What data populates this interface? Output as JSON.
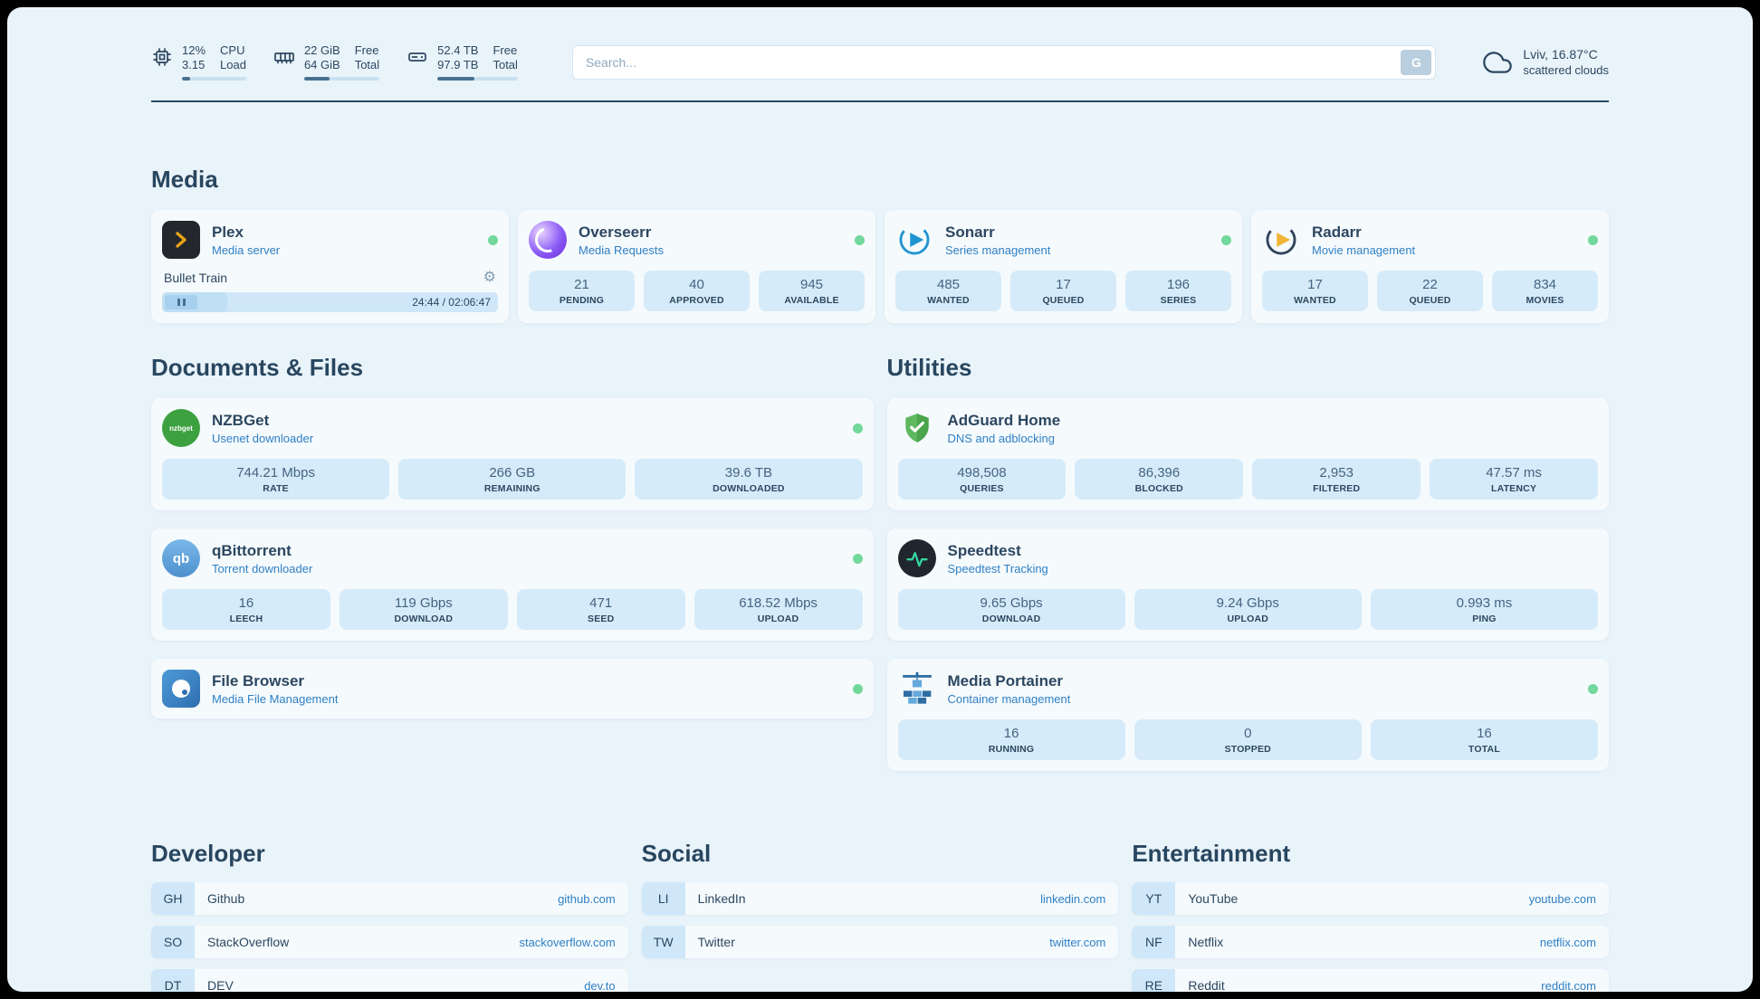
{
  "topbar": {
    "cpu": {
      "value1": "12%",
      "value2": "3.15",
      "label1": "CPU",
      "label2": "Load",
      "percent": 12
    },
    "memory": {
      "value1": "22 GiB",
      "value2": "64 GiB",
      "label1": "Free",
      "label2": "Total",
      "percent": 34
    },
    "disk": {
      "value1": "52.4 TB",
      "value2": "97.9 TB",
      "label1": "Free",
      "label2": "Total",
      "percent": 46
    },
    "search": {
      "placeholder": "Search...",
      "button_label": "G"
    },
    "weather": {
      "location": "Lviv, 16.87°C",
      "condition": "scattered clouds"
    }
  },
  "sections": {
    "media": "Media",
    "documents": "Documents & Files",
    "utilities": "Utilities",
    "developer": "Developer",
    "social": "Social",
    "entertainment": "Entertainment"
  },
  "services": {
    "plex": {
      "name": "Plex",
      "subtitle": "Media server",
      "now_playing": "Bullet Train",
      "time": "24:44 / 02:06:47",
      "progress": 19.5
    },
    "overseerr": {
      "name": "Overseerr",
      "subtitle": "Media Requests",
      "stats": [
        {
          "value": "21",
          "label": "PENDING"
        },
        {
          "value": "40",
          "label": "APPROVED"
        },
        {
          "value": "945",
          "label": "AVAILABLE"
        }
      ]
    },
    "sonarr": {
      "name": "Sonarr",
      "subtitle": "Series management",
      "stats": [
        {
          "value": "485",
          "label": "WANTED"
        },
        {
          "value": "17",
          "label": "QUEUED"
        },
        {
          "value": "196",
          "label": "SERIES"
        }
      ]
    },
    "radarr": {
      "name": "Radarr",
      "subtitle": "Movie management",
      "stats": [
        {
          "value": "17",
          "label": "WANTED"
        },
        {
          "value": "22",
          "label": "QUEUED"
        },
        {
          "value": "834",
          "label": "MOVIES"
        }
      ]
    },
    "nzbget": {
      "name": "NZBGet",
      "subtitle": "Usenet downloader",
      "stats": [
        {
          "value": "744.21 Mbps",
          "label": "RATE"
        },
        {
          "value": "266 GB",
          "label": "REMAINING"
        },
        {
          "value": "39.6 TB",
          "label": "DOWNLOADED"
        }
      ]
    },
    "qbittorrent": {
      "name": "qBittorrent",
      "subtitle": "Torrent downloader",
      "stats": [
        {
          "value": "16",
          "label": "LEECH"
        },
        {
          "value": "119 Gbps",
          "label": "DOWNLOAD"
        },
        {
          "value": "471",
          "label": "SEED"
        },
        {
          "value": "618.52 Mbps",
          "label": "UPLOAD"
        }
      ]
    },
    "filebrowser": {
      "name": "File Browser",
      "subtitle": "Media File Management"
    },
    "adguard": {
      "name": "AdGuard Home",
      "subtitle": "DNS and adblocking",
      "stats": [
        {
          "value": "498,508",
          "label": "QUERIES"
        },
        {
          "value": "86,396",
          "label": "BLOCKED"
        },
        {
          "value": "2,953",
          "label": "FILTERED"
        },
        {
          "value": "47.57 ms",
          "label": "LATENCY"
        }
      ]
    },
    "speedtest": {
      "name": "Speedtest",
      "subtitle": "Speedtest Tracking",
      "stats": [
        {
          "value": "9.65 Gbps",
          "label": "DOWNLOAD"
        },
        {
          "value": "9.24 Gbps",
          "label": "UPLOAD"
        },
        {
          "value": "0.993 ms",
          "label": "PING"
        }
      ]
    },
    "portainer": {
      "name": "Media Portainer",
      "subtitle": "Container management",
      "stats": [
        {
          "value": "16",
          "label": "RUNNING"
        },
        {
          "value": "0",
          "label": "STOPPED"
        },
        {
          "value": "16",
          "label": "TOTAL"
        }
      ]
    }
  },
  "bookmarks": {
    "developer": [
      {
        "abbr": "GH",
        "name": "Github",
        "url": "github.com"
      },
      {
        "abbr": "SO",
        "name": "StackOverflow",
        "url": "stackoverflow.com"
      },
      {
        "abbr": "DT",
        "name": "DEV",
        "url": "dev.to"
      }
    ],
    "social": [
      {
        "abbr": "LI",
        "name": "LinkedIn",
        "url": "linkedin.com"
      },
      {
        "abbr": "TW",
        "name": "Twitter",
        "url": "twitter.com"
      }
    ],
    "entertainment": [
      {
        "abbr": "YT",
        "name": "YouTube",
        "url": "youtube.com"
      },
      {
        "abbr": "NF",
        "name": "Netflix",
        "url": "netflix.com"
      },
      {
        "abbr": "RE",
        "name": "Reddit",
        "url": "reddit.com"
      }
    ]
  },
  "icons": {
    "gear": "⚙",
    "nzbget_text": "nzbget",
    "qb_text": "qb"
  }
}
